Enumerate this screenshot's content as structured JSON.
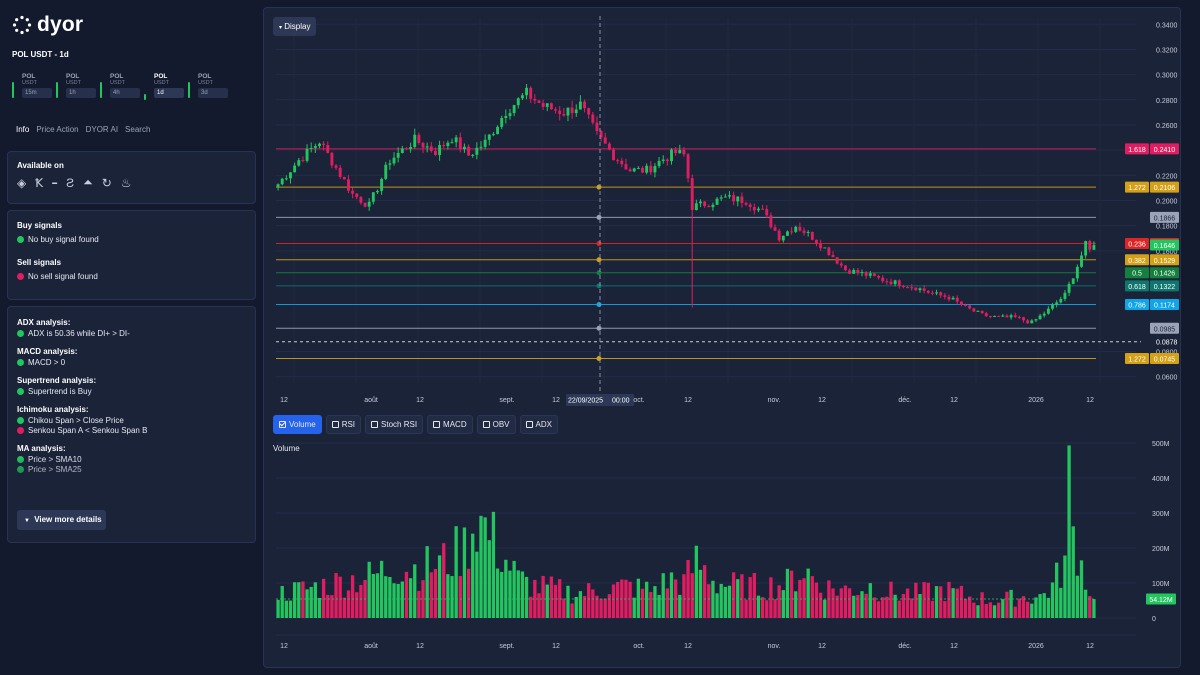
{
  "app": {
    "name": "dyor"
  },
  "pair_title": "POL USDT - 1d",
  "timeframes": [
    {
      "symbol": "POL",
      "quote": "USDT",
      "interval": "15m",
      "trend_color": "#22c55e"
    },
    {
      "symbol": "POL",
      "quote": "USDT",
      "interval": "1h",
      "trend_color": "#22c55e"
    },
    {
      "symbol": "POL",
      "quote": "USDT",
      "interval": "4h",
      "trend_color": "#22c55e"
    },
    {
      "symbol": "POL",
      "quote": "USDT",
      "interval": "1d",
      "trend_color": "#22c55e",
      "active": true
    },
    {
      "symbol": "POL",
      "quote": "USDT",
      "interval": "3d",
      "trend_color": "#22c55e"
    }
  ],
  "tabs": [
    "Info",
    "Price Action",
    "DYOR AI",
    "Search"
  ],
  "available_on": {
    "title": "Available on",
    "icons": [
      "binance-icon",
      "kucoin-icon",
      "bybit-icon",
      "swap-icon",
      "mountain-icon",
      "refresh-icon",
      "flame-icon"
    ]
  },
  "signals": {
    "buy_title": "Buy signals",
    "buy_text": "No buy signal found",
    "sell_title": "Sell signals",
    "sell_text": "No sell signal found"
  },
  "analysis": [
    {
      "title": "ADX analysis:",
      "lines": [
        {
          "status": "green",
          "text": "ADX is 50.36 while DI+ > DI-"
        }
      ]
    },
    {
      "title": "MACD analysis:",
      "lines": [
        {
          "status": "green",
          "text": "MACD > 0"
        }
      ]
    },
    {
      "title": "Supertrend analysis:",
      "lines": [
        {
          "status": "green",
          "text": "Supertrend is Buy"
        }
      ]
    },
    {
      "title": "Ichimoku analysis:",
      "lines": [
        {
          "status": "green",
          "text": "Chikou Span > Close Price"
        },
        {
          "status": "red",
          "text": "Senkou Span A < Senkou Span B"
        }
      ]
    },
    {
      "title": "MA analysis:",
      "lines": [
        {
          "status": "green",
          "text": "Price > SMA10"
        },
        {
          "status": "green",
          "text": "Price > SMA25"
        }
      ]
    }
  ],
  "view_more": "View more details",
  "display_button": "Display",
  "indicators": [
    {
      "label": "Volume",
      "checked": true
    },
    {
      "label": "RSI",
      "checked": false
    },
    {
      "label": "Stoch RSI",
      "checked": false
    },
    {
      "label": "MACD",
      "checked": false
    },
    {
      "label": "OBV",
      "checked": false
    },
    {
      "label": "ADX",
      "checked": false
    }
  ],
  "crosshair": {
    "date": "22/09/2025",
    "time": "00:00"
  },
  "colors": {
    "up": "#22c55e",
    "down": "#e11d61",
    "background": "#1b2339",
    "accent": "#2563eb"
  },
  "chart_data": [
    {
      "type": "candlestick",
      "title": "",
      "ylim": [
        0.055,
        0.345
      ],
      "y_ticks": [
        "0.3400",
        "0.3200",
        "0.3000",
        "0.2800",
        "0.2600",
        "0.2400",
        "0.2200",
        "0.2000",
        "0.1800",
        "0.1600",
        "0.0800",
        "0.0600"
      ],
      "x_ticks": [
        "12",
        "août",
        "12",
        "sept.",
        "12",
        "oct.",
        "12",
        "nov.",
        "12",
        "déc.",
        "12",
        "2026",
        "12"
      ],
      "fib_levels": [
        {
          "ratio": "1.618",
          "price": "0.2410",
          "value": 0.241,
          "color": "#e11d61"
        },
        {
          "ratio": "1.272",
          "price": "0.2106",
          "value": 0.2106,
          "color": "#d4a017"
        },
        {
          "ratio": "",
          "price": "0.1866",
          "value": 0.1866,
          "color": "#9aa3b8"
        },
        {
          "ratio": "0.236",
          "price": "0.1658",
          "value": 0.1658,
          "color": "#dc2626"
        },
        {
          "ratio": "0.382",
          "price": "0.1529",
          "value": 0.1529,
          "color": "#d4a017"
        },
        {
          "ratio": "0.5",
          "price": "0.1426",
          "value": 0.1426,
          "color": "#15803d"
        },
        {
          "ratio": "0.618",
          "price": "0.1322",
          "value": 0.1322,
          "color": "#0f766e"
        },
        {
          "ratio": "0.786",
          "price": "0.1174",
          "value": 0.1174,
          "color": "#0ea5e9"
        },
        {
          "ratio": "",
          "price": "0.0985",
          "value": 0.0985,
          "color": "#9aa3b8"
        },
        {
          "ratio": "1.272",
          "price": "0.0745",
          "value": 0.0745,
          "color": "#d4a017"
        }
      ],
      "current_price": {
        "price": "0.1646",
        "value": 0.1646
      },
      "dashed_level": {
        "price": "0.0878",
        "value": 0.0878
      },
      "close_anchors": [
        [
          0,
          0.213
        ],
        [
          5,
          0.232
        ],
        [
          10,
          0.247
        ],
        [
          14,
          0.226
        ],
        [
          18,
          0.205
        ],
        [
          22,
          0.196
        ],
        [
          27,
          0.232
        ],
        [
          33,
          0.248
        ],
        [
          38,
          0.239
        ],
        [
          42,
          0.25
        ],
        [
          46,
          0.236
        ],
        [
          50,
          0.246
        ],
        [
          55,
          0.271
        ],
        [
          60,
          0.285
        ],
        [
          64,
          0.275
        ],
        [
          69,
          0.27
        ],
        [
          73,
          0.276
        ],
        [
          77,
          0.252
        ],
        [
          81,
          0.236
        ],
        [
          85,
          0.224
        ],
        [
          89,
          0.224
        ],
        [
          93,
          0.233
        ],
        [
          96,
          0.238
        ],
        [
          98,
          0.236
        ],
        [
          99,
          0.218
        ],
        [
          100,
          0.195
        ],
        [
          104,
          0.198
        ],
        [
          108,
          0.202
        ],
        [
          113,
          0.2
        ],
        [
          117,
          0.191
        ],
        [
          121,
          0.171
        ],
        [
          125,
          0.18
        ],
        [
          129,
          0.171
        ],
        [
          133,
          0.159
        ],
        [
          137,
          0.145
        ],
        [
          141,
          0.142
        ],
        [
          146,
          0.137
        ],
        [
          150,
          0.134
        ],
        [
          154,
          0.131
        ],
        [
          158,
          0.126
        ],
        [
          162,
          0.123
        ],
        [
          166,
          0.115
        ],
        [
          170,
          0.109
        ],
        [
          174,
          0.107
        ],
        [
          178,
          0.107
        ],
        [
          182,
          0.103
        ],
        [
          186,
          0.113
        ],
        [
          190,
          0.125
        ],
        [
          193,
          0.148
        ],
        [
          195,
          0.165
        ],
        [
          196,
          0.16
        ],
        [
          197,
          0.1646
        ]
      ]
    },
    {
      "type": "bar",
      "title": "Volume",
      "ylim": [
        0,
        500
      ],
      "y_ticks": [
        "500M",
        "400M",
        "300M",
        "200M",
        "100M",
        "0"
      ],
      "x_ticks": [
        "12",
        "août",
        "12",
        "sept.",
        "12",
        "oct.",
        "12",
        "nov.",
        "12",
        "déc.",
        "12",
        "2026",
        "12"
      ],
      "current_volume": "54.12M",
      "current_volume_value": 54.12,
      "volume_anchors_millions": [
        [
          0,
          70
        ],
        [
          10,
          90
        ],
        [
          18,
          110
        ],
        [
          23,
          120
        ],
        [
          28,
          150
        ],
        [
          34,
          140
        ],
        [
          40,
          160
        ],
        [
          45,
          200
        ],
        [
          48,
          290
        ],
        [
          52,
          220
        ],
        [
          58,
          110
        ],
        [
          62,
          90
        ],
        [
          68,
          80
        ],
        [
          72,
          70
        ],
        [
          78,
          80
        ],
        [
          84,
          90
        ],
        [
          90,
          80
        ],
        [
          95,
          110
        ],
        [
          98,
          100
        ],
        [
          101,
          160
        ],
        [
          106,
          100
        ],
        [
          112,
          90
        ],
        [
          118,
          90
        ],
        [
          123,
          100
        ],
        [
          127,
          140
        ],
        [
          131,
          90
        ],
        [
          137,
          80
        ],
        [
          143,
          90
        ],
        [
          149,
          70
        ],
        [
          155,
          70
        ],
        [
          161,
          80
        ],
        [
          167,
          60
        ],
        [
          173,
          50
        ],
        [
          179,
          60
        ],
        [
          184,
          60
        ],
        [
          187,
          90
        ],
        [
          190,
          160
        ],
        [
          191,
          380
        ],
        [
          192,
          240
        ],
        [
          193,
          210
        ],
        [
          194,
          150
        ],
        [
          195,
          120
        ],
        [
          196,
          80
        ],
        [
          197,
          54
        ]
      ]
    }
  ]
}
